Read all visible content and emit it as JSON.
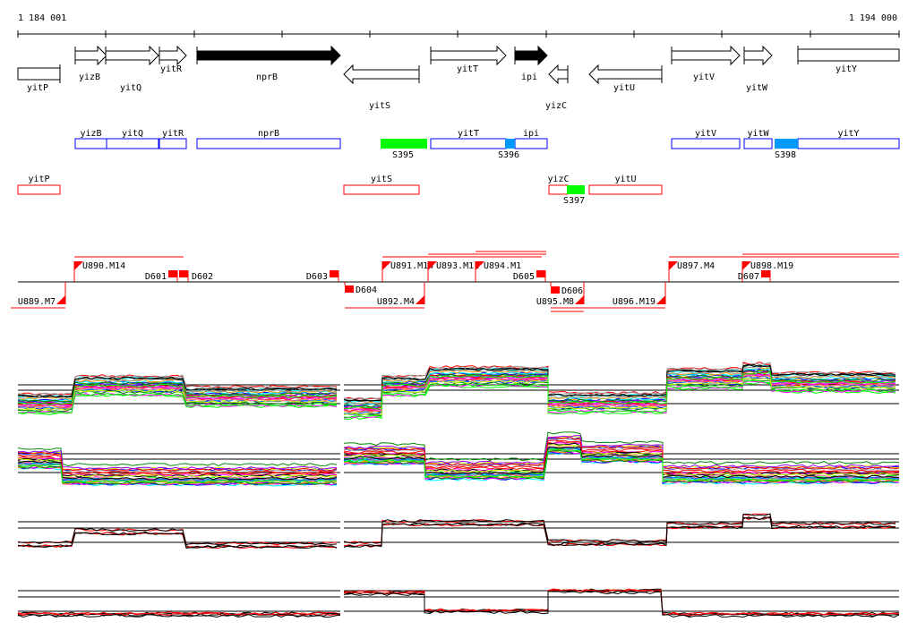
{
  "ruler": {
    "start_label": "1 184 001",
    "end_label": "1 194 000"
  },
  "genes": [
    {
      "name": "yitP",
      "strand": "none",
      "fill": "white"
    },
    {
      "name": "yizB",
      "strand": "+",
      "fill": "white"
    },
    {
      "name": "yitQ",
      "strand": "+",
      "fill": "white"
    },
    {
      "name": "yitR",
      "strand": "+",
      "fill": "white"
    },
    {
      "name": "nprB",
      "strand": "+",
      "fill": "black"
    },
    {
      "name": "yitS",
      "strand": "-",
      "fill": "white"
    },
    {
      "name": "yitT",
      "strand": "+",
      "fill": "white"
    },
    {
      "name": "ipi",
      "strand": "+",
      "fill": "black"
    },
    {
      "name": "yizC",
      "strand": "-",
      "fill": "white"
    },
    {
      "name": "yitU",
      "strand": "-",
      "fill": "white"
    },
    {
      "name": "yitV",
      "strand": "+",
      "fill": "white"
    },
    {
      "name": "yitW",
      "strand": "+",
      "fill": "white"
    },
    {
      "name": "yitY",
      "strand": "none",
      "fill": "white"
    }
  ],
  "forward_transcripts": [
    "yizB",
    "yitQ",
    "yitR",
    "nprB",
    "yitT",
    "ipi",
    "yitV",
    "yitW",
    "yitY"
  ],
  "reverse_transcripts": [
    "yitP",
    "yitS",
    "yizC",
    "yitU"
  ],
  "segments": [
    {
      "name": "S395",
      "color": "#00ff00"
    },
    {
      "name": "S396",
      "color": "#0099ff"
    },
    {
      "name": "S397",
      "color": "#00ff00"
    },
    {
      "name": "S398",
      "color": "#0099ff"
    }
  ],
  "upshifts_top": [
    "U890.M14",
    "U891.M14",
    "U893.M11",
    "U894.M1",
    "U897.M4",
    "U898.M19"
  ],
  "upshifts_bottom": [
    "U889.M7",
    "U892.M4",
    "U895.M8",
    "U896.M19"
  ],
  "downshifts": [
    "D601",
    "D602",
    "D603",
    "D604",
    "D605",
    "D606",
    "D607"
  ],
  "colors": {
    "forward": "#0000ff",
    "reverse": "#ff0000",
    "marker": "#ff0000"
  }
}
